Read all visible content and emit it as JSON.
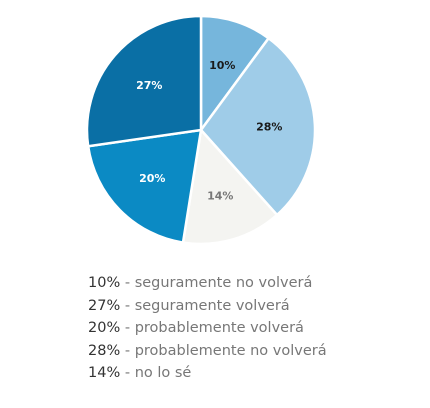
{
  "colors": {
    "slice_0": "#76b6dc",
    "slice_1": "#0a6fa5",
    "slice_2": "#0b8ac4",
    "slice_3": "#9fcce8",
    "slice_4": "#f4f4f1",
    "label_dark": "#1a1a1a",
    "label_light": "#ffffff",
    "label_muted": "#777777"
  },
  "chart_data": {
    "type": "pie",
    "title": "",
    "slices": [
      {
        "label": "seguramente no volverá",
        "value": 10,
        "value_label": "10%"
      },
      {
        "label": "seguramente volverá",
        "value": 27,
        "value_label": "27%"
      },
      {
        "label": "probablemente volverá",
        "value": 20,
        "value_label": "20%"
      },
      {
        "label": "probablemente no volverá",
        "value": 28,
        "value_label": "28%"
      },
      {
        "label": "no lo sé",
        "value": 14,
        "value_label": "14%"
      }
    ],
    "slice_order_clockwise_from_top": [
      "10%",
      "28%",
      "14%",
      "20%",
      "27%"
    ],
    "legend_position": "bottom"
  },
  "legend": {
    "separator": "-",
    "items": [
      {
        "pct": "10%",
        "label": "seguramente no volverá"
      },
      {
        "pct": "27%",
        "label": "seguramente volverá"
      },
      {
        "pct": "20%",
        "label": "probablemente volverá"
      },
      {
        "pct": "28%",
        "label": "probablemente no volverá"
      },
      {
        "pct": "14%",
        "label": "no lo sé"
      }
    ]
  }
}
